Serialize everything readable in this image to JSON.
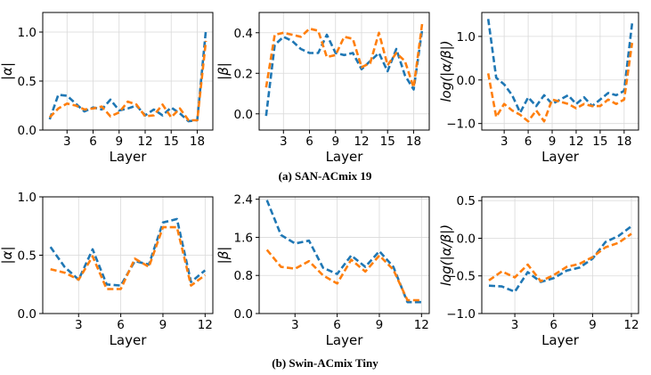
{
  "captions": {
    "top": "(a) SAN-ACmix 19",
    "bottom": "(b) Swin-ACmix Tiny"
  },
  "colors": {
    "series1": "#1f77b4",
    "series2": "#ff7f0e",
    "grid": "#d9d9d9"
  },
  "chart_data": [
    {
      "type": "line",
      "panel": "san-alpha",
      "xlabel": "Layer",
      "ylabel": "|α|",
      "xlim": [
        0.2,
        19.8
      ],
      "ylim": [
        0,
        1.2
      ],
      "xticks": [
        3,
        6,
        9,
        12,
        15,
        18
      ],
      "xtick_labels": [
        "3",
        "6",
        "9",
        "12",
        "15",
        "18"
      ],
      "yticks": [
        0,
        0.5,
        1.0
      ],
      "ytick_labels": [
        "0.0",
        "0.5",
        "1.0"
      ],
      "x": [
        1,
        2,
        3,
        4,
        5,
        6,
        7,
        8,
        9,
        10,
        11,
        12,
        13,
        14,
        15,
        16,
        17,
        18,
        19
      ],
      "series": [
        {
          "name": "series1",
          "values": [
            0.11,
            0.36,
            0.35,
            0.27,
            0.19,
            0.23,
            0.21,
            0.31,
            0.2,
            0.22,
            0.25,
            0.15,
            0.21,
            0.15,
            0.23,
            0.17,
            0.09,
            0.1,
            1.02
          ]
        },
        {
          "name": "series2",
          "values": [
            0.13,
            0.22,
            0.27,
            0.25,
            0.21,
            0.22,
            0.24,
            0.14,
            0.18,
            0.29,
            0.26,
            0.14,
            0.15,
            0.26,
            0.13,
            0.22,
            0.1,
            0.1,
            0.91
          ]
        }
      ]
    },
    {
      "type": "line",
      "panel": "san-beta",
      "xlabel": "Layer",
      "ylabel": "|β|",
      "xlim": [
        0.2,
        19.8
      ],
      "ylim": [
        -0.08,
        0.5
      ],
      "xticks": [
        3,
        6,
        9,
        12,
        15,
        18
      ],
      "xtick_labels": [
        "3",
        "6",
        "9",
        "12",
        "15",
        "18"
      ],
      "yticks": [
        0,
        0.2,
        0.4
      ],
      "ytick_labels": [
        "0.0",
        "0.2",
        "0.4"
      ],
      "x": [
        1,
        2,
        3,
        4,
        5,
        6,
        7,
        8,
        9,
        10,
        11,
        12,
        13,
        14,
        15,
        16,
        17,
        18,
        19
      ],
      "series": [
        {
          "name": "series1",
          "values": [
            -0.01,
            0.34,
            0.38,
            0.36,
            0.32,
            0.3,
            0.3,
            0.39,
            0.3,
            0.29,
            0.3,
            0.22,
            0.26,
            0.3,
            0.21,
            0.32,
            0.19,
            0.12,
            0.42
          ]
        },
        {
          "name": "series2",
          "values": [
            0.13,
            0.39,
            0.4,
            0.39,
            0.38,
            0.42,
            0.41,
            0.28,
            0.29,
            0.38,
            0.37,
            0.23,
            0.25,
            0.4,
            0.24,
            0.3,
            0.26,
            0.13,
            0.45
          ]
        }
      ]
    },
    {
      "type": "line",
      "panel": "san-log",
      "xlabel": "Layer",
      "ylabel": "log(|α/β|)",
      "xlim": [
        0.2,
        19.8
      ],
      "ylim": [
        -1.15,
        1.55
      ],
      "xticks": [
        3,
        6,
        9,
        12,
        15,
        18
      ],
      "xtick_labels": [
        "3",
        "6",
        "9",
        "12",
        "15",
        "18"
      ],
      "yticks": [
        -1.0,
        0,
        1.0
      ],
      "ytick_labels": [
        "−1.0",
        "0.0",
        "1.0"
      ],
      "x": [
        1,
        2,
        3,
        4,
        5,
        6,
        7,
        8,
        9,
        10,
        11,
        12,
        13,
        14,
        15,
        16,
        17,
        18,
        19
      ],
      "series": [
        {
          "name": "series1",
          "values": [
            1.4,
            0.05,
            -0.1,
            -0.35,
            -0.75,
            -0.4,
            -0.6,
            -0.35,
            -0.55,
            -0.45,
            -0.35,
            -0.55,
            -0.4,
            -0.6,
            -0.45,
            -0.3,
            -0.35,
            -0.25,
            1.3
          ]
        },
        {
          "name": "series2",
          "values": [
            0.15,
            -0.85,
            -0.55,
            -0.7,
            -0.8,
            -0.95,
            -0.7,
            -0.95,
            -0.45,
            -0.5,
            -0.55,
            -0.65,
            -0.55,
            -0.6,
            -0.6,
            -0.45,
            -0.55,
            -0.45,
            0.85
          ]
        }
      ]
    },
    {
      "type": "line",
      "panel": "swin-alpha",
      "xlabel": "Layer",
      "ylabel": "|α|",
      "xlim": [
        0.45,
        12.55
      ],
      "ylim": [
        0,
        1.0
      ],
      "xticks": [
        3,
        6,
        9,
        12
      ],
      "xtick_labels": [
        "3",
        "6",
        "9",
        "12"
      ],
      "yticks": [
        0,
        0.5,
        1.0
      ],
      "ytick_labels": [
        "0.0",
        "0.5",
        "1.0"
      ],
      "x": [
        1,
        2,
        3,
        4,
        5,
        6,
        7,
        8,
        9,
        10,
        11,
        12
      ],
      "series": [
        {
          "name": "series1",
          "values": [
            0.57,
            0.4,
            0.29,
            0.55,
            0.25,
            0.24,
            0.45,
            0.42,
            0.78,
            0.81,
            0.27,
            0.37
          ]
        },
        {
          "name": "series2",
          "values": [
            0.38,
            0.35,
            0.29,
            0.49,
            0.21,
            0.21,
            0.47,
            0.4,
            0.74,
            0.74,
            0.24,
            0.33
          ]
        }
      ]
    },
    {
      "type": "line",
      "panel": "swin-beta",
      "xlabel": "Layer",
      "ylabel": "|β|",
      "xlim": [
        0.45,
        12.55
      ],
      "ylim": [
        0,
        2.45
      ],
      "xticks": [
        3,
        6,
        9,
        12
      ],
      "xtick_labels": [
        "3",
        "6",
        "9",
        "12"
      ],
      "yticks": [
        0,
        0.8,
        1.6,
        2.4
      ],
      "ytick_labels": [
        "0.0",
        "0.8",
        "1.6",
        "2.4"
      ],
      "x": [
        1,
        2,
        3,
        4,
        5,
        6,
        7,
        8,
        9,
        10,
        11,
        12
      ],
      "series": [
        {
          "name": "series1",
          "values": [
            2.38,
            1.65,
            1.47,
            1.53,
            0.96,
            0.83,
            1.22,
            0.98,
            1.31,
            0.98,
            0.24,
            0.24
          ]
        },
        {
          "name": "series2",
          "values": [
            1.34,
            0.98,
            0.94,
            1.1,
            0.8,
            0.63,
            1.13,
            0.88,
            1.22,
            0.92,
            0.28,
            0.28
          ]
        }
      ]
    },
    {
      "type": "line",
      "panel": "swin-log",
      "xlabel": "Layer",
      "ylabel": "log(|α/β|)",
      "xlim": [
        0.45,
        12.55
      ],
      "ylim": [
        -1.0,
        0.55
      ],
      "xticks": [
        3,
        6,
        9,
        12
      ],
      "xtick_labels": [
        "3",
        "6",
        "9",
        "12"
      ],
      "yticks": [
        -1.0,
        -0.5,
        0,
        0.5
      ],
      "ytick_labels": [
        "−1.0",
        "−0.5",
        "0.0",
        "0.5"
      ],
      "x": [
        1,
        2,
        3,
        4,
        5,
        6,
        7,
        8,
        9,
        10,
        11,
        12
      ],
      "series": [
        {
          "name": "series1",
          "values": [
            -0.63,
            -0.64,
            -0.71,
            -0.45,
            -0.58,
            -0.53,
            -0.43,
            -0.39,
            -0.27,
            -0.05,
            0.03,
            0.16
          ]
        },
        {
          "name": "series2",
          "values": [
            -0.56,
            -0.44,
            -0.52,
            -0.35,
            -0.57,
            -0.49,
            -0.38,
            -0.34,
            -0.25,
            -0.12,
            -0.06,
            0.06
          ]
        }
      ]
    }
  ]
}
